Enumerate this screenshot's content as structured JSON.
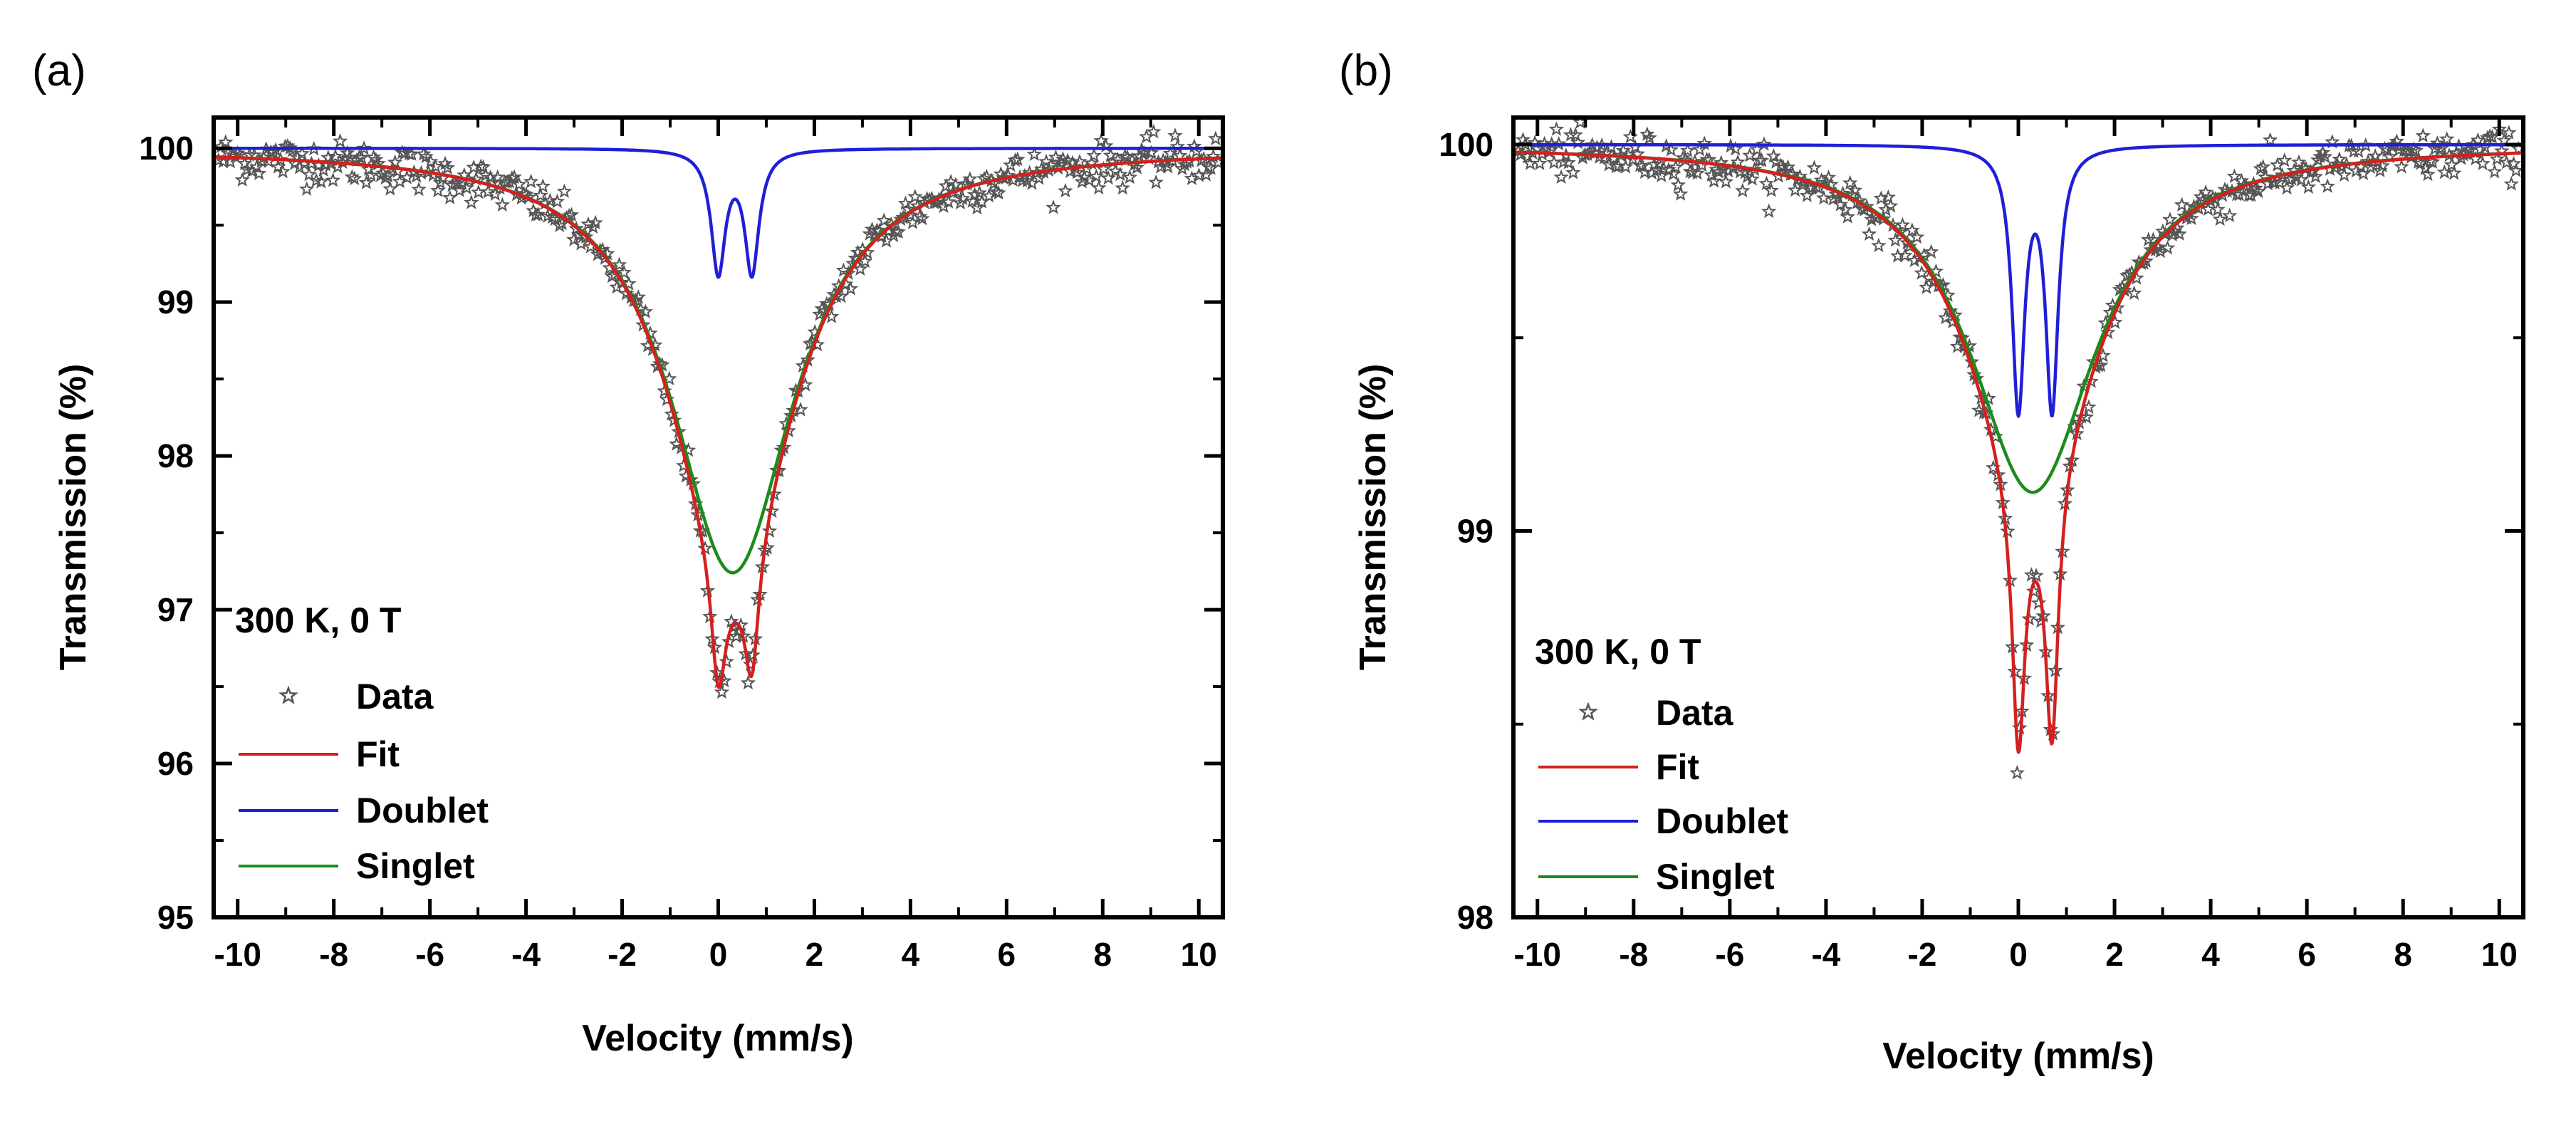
{
  "figure": {
    "background": "#ffffff"
  },
  "chart_data": [
    {
      "type": "line",
      "panel_label": "(a)",
      "title": "",
      "xlabel": "Velocity (mm/s)",
      "ylabel": "Transmission (%)",
      "xlim": [
        -10.5,
        10.5
      ],
      "ylim": [
        95,
        100.2
      ],
      "xticks": [
        -10,
        -8,
        -6,
        -4,
        -2,
        0,
        2,
        4,
        6,
        8,
        10
      ],
      "xtick_labels": [
        "-10",
        "-8",
        "-6",
        "-4",
        "-2",
        "0",
        "2",
        "4",
        "6",
        "8",
        "10"
      ],
      "yticks": [
        95,
        96,
        97,
        98,
        99,
        100
      ],
      "ytick_labels": [
        "95",
        "96",
        "97",
        "98",
        "99",
        "100"
      ],
      "grid": false,
      "legend": {
        "location": "lower-left",
        "title": "300 K, 0 T",
        "entries": [
          {
            "name": "Data",
            "marker": "star",
            "color": "#555555"
          },
          {
            "name": "Fit",
            "line": true,
            "color": "#d42020"
          },
          {
            "name": "Doublet",
            "line": true,
            "color": "#1f1fd8"
          },
          {
            "name": "Singlet",
            "line": true,
            "color": "#1a8c1a"
          }
        ]
      },
      "model": {
        "baseline": 100,
        "doublet": {
          "centers": [
            0.0,
            0.7
          ],
          "depth": 0.79,
          "hwhm": 0.18
        },
        "singlet": {
          "center": 0.3,
          "depth": 2.76,
          "hwhm": 1.55
        },
        "noise": 0.07,
        "data_points": 420
      },
      "series": [
        {
          "name": "Data",
          "kind": "scatter",
          "color": "#555555"
        },
        {
          "name": "Fit",
          "kind": "line",
          "color": "#d42020"
        },
        {
          "name": "Doublet",
          "kind": "line",
          "color": "#1f1fd8"
        },
        {
          "name": "Singlet",
          "kind": "line",
          "color": "#1a8c1a"
        }
      ]
    },
    {
      "type": "line",
      "panel_label": "(b)",
      "title": "",
      "xlabel": "Velocity (mm/s)",
      "ylabel": "Transmission (%)",
      "xlim": [
        -10.5,
        10.5
      ],
      "ylim": [
        98,
        100.07
      ],
      "xticks": [
        -10,
        -8,
        -6,
        -4,
        -2,
        0,
        2,
        4,
        6,
        8,
        10
      ],
      "xtick_labels": [
        "-10",
        "-8",
        "-6",
        "-4",
        "-2",
        "0",
        "2",
        "4",
        "6",
        "8",
        "10"
      ],
      "yticks": [
        98,
        99,
        100
      ],
      "ytick_labels": [
        "98",
        "99",
        "100"
      ],
      "grid": false,
      "legend": {
        "location": "lower-left",
        "title": "300 K, 0 T",
        "entries": [
          {
            "name": "Data",
            "marker": "star",
            "color": "#555555"
          },
          {
            "name": "Fit",
            "line": true,
            "color": "#d42020"
          },
          {
            "name": "Doublet",
            "line": true,
            "color": "#1f1fd8"
          },
          {
            "name": "Singlet",
            "line": true,
            "color": "#1a8c1a"
          }
        ]
      },
      "model": {
        "baseline": 100,
        "doublet": {
          "centers": [
            0.0,
            0.7
          ],
          "depth": 0.67,
          "hwhm": 0.16
        },
        "singlet": {
          "center": 0.3,
          "depth": 0.9,
          "hwhm": 1.6
        },
        "noise": 0.03,
        "data_points": 420
      },
      "series": [
        {
          "name": "Data",
          "kind": "scatter",
          "color": "#555555"
        },
        {
          "name": "Fit",
          "kind": "line",
          "color": "#d42020"
        },
        {
          "name": "Doublet",
          "kind": "line",
          "color": "#1f1fd8"
        },
        {
          "name": "Singlet",
          "kind": "line",
          "color": "#1a8c1a"
        }
      ]
    }
  ]
}
